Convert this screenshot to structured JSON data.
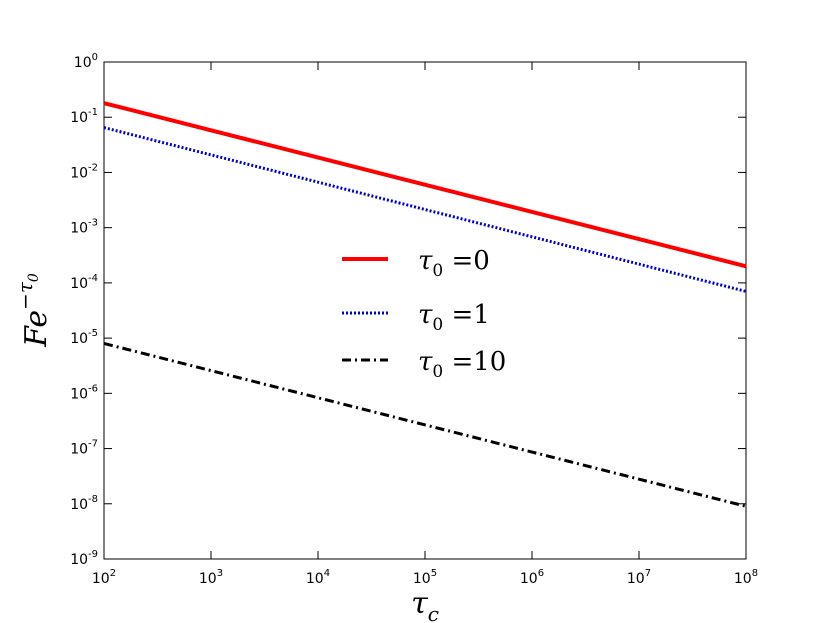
{
  "chart_data": {
    "type": "line",
    "x_scale": "log",
    "y_scale": "log",
    "xlim": [
      100,
      100000000
    ],
    "ylim": [
      1e-09,
      1
    ],
    "grid": false,
    "legend_position": "center",
    "xlabel": {
      "base": "τ",
      "sub": "c"
    },
    "ylabel": {
      "base": "Fe",
      "sup": "−τ",
      "sup_sub": "0"
    },
    "x_ticks": [
      {
        "base": "10",
        "exp": "2",
        "value": 100
      },
      {
        "base": "10",
        "exp": "3",
        "value": 1000
      },
      {
        "base": "10",
        "exp": "4",
        "value": 10000
      },
      {
        "base": "10",
        "exp": "5",
        "value": 100000
      },
      {
        "base": "10",
        "exp": "6",
        "value": 1000000
      },
      {
        "base": "10",
        "exp": "7",
        "value": 10000000
      },
      {
        "base": "10",
        "exp": "8",
        "value": 100000000
      }
    ],
    "y_ticks": [
      {
        "base": "10",
        "exp": "-9",
        "value": 1e-09
      },
      {
        "base": "10",
        "exp": "-8",
        "value": 1e-08
      },
      {
        "base": "10",
        "exp": "-7",
        "value": 1e-07
      },
      {
        "base": "10",
        "exp": "-6",
        "value": 1e-06
      },
      {
        "base": "10",
        "exp": "-5",
        "value": 1e-05
      },
      {
        "base": "10",
        "exp": "-4",
        "value": 0.0001
      },
      {
        "base": "10",
        "exp": "-3",
        "value": 0.001
      },
      {
        "base": "10",
        "exp": "-2",
        "value": 0.01
      },
      {
        "base": "10",
        "exp": "-1",
        "value": 0.1
      },
      {
        "base": "10",
        "exp": "0",
        "value": 1
      }
    ],
    "series": [
      {
        "label": {
          "base": "τ",
          "sub": "0",
          "rest": " =0"
        },
        "color": "#ff0000",
        "style": "solid",
        "x": [
          100,
          100000000
        ],
        "y": [
          0.18,
          0.0002
        ]
      },
      {
        "label": {
          "base": "τ",
          "sub": "0",
          "rest": " =1"
        },
        "color": "#0000cc",
        "style": "dotted",
        "x": [
          100,
          100000000
        ],
        "y": [
          0.065,
          7e-05
        ]
      },
      {
        "label": {
          "base": "τ",
          "sub": "0",
          "rest": " =10"
        },
        "color": "#000000",
        "style": "dashdot",
        "x": [
          100,
          100000000
        ],
        "y": [
          8e-06,
          9e-09
        ]
      }
    ]
  }
}
